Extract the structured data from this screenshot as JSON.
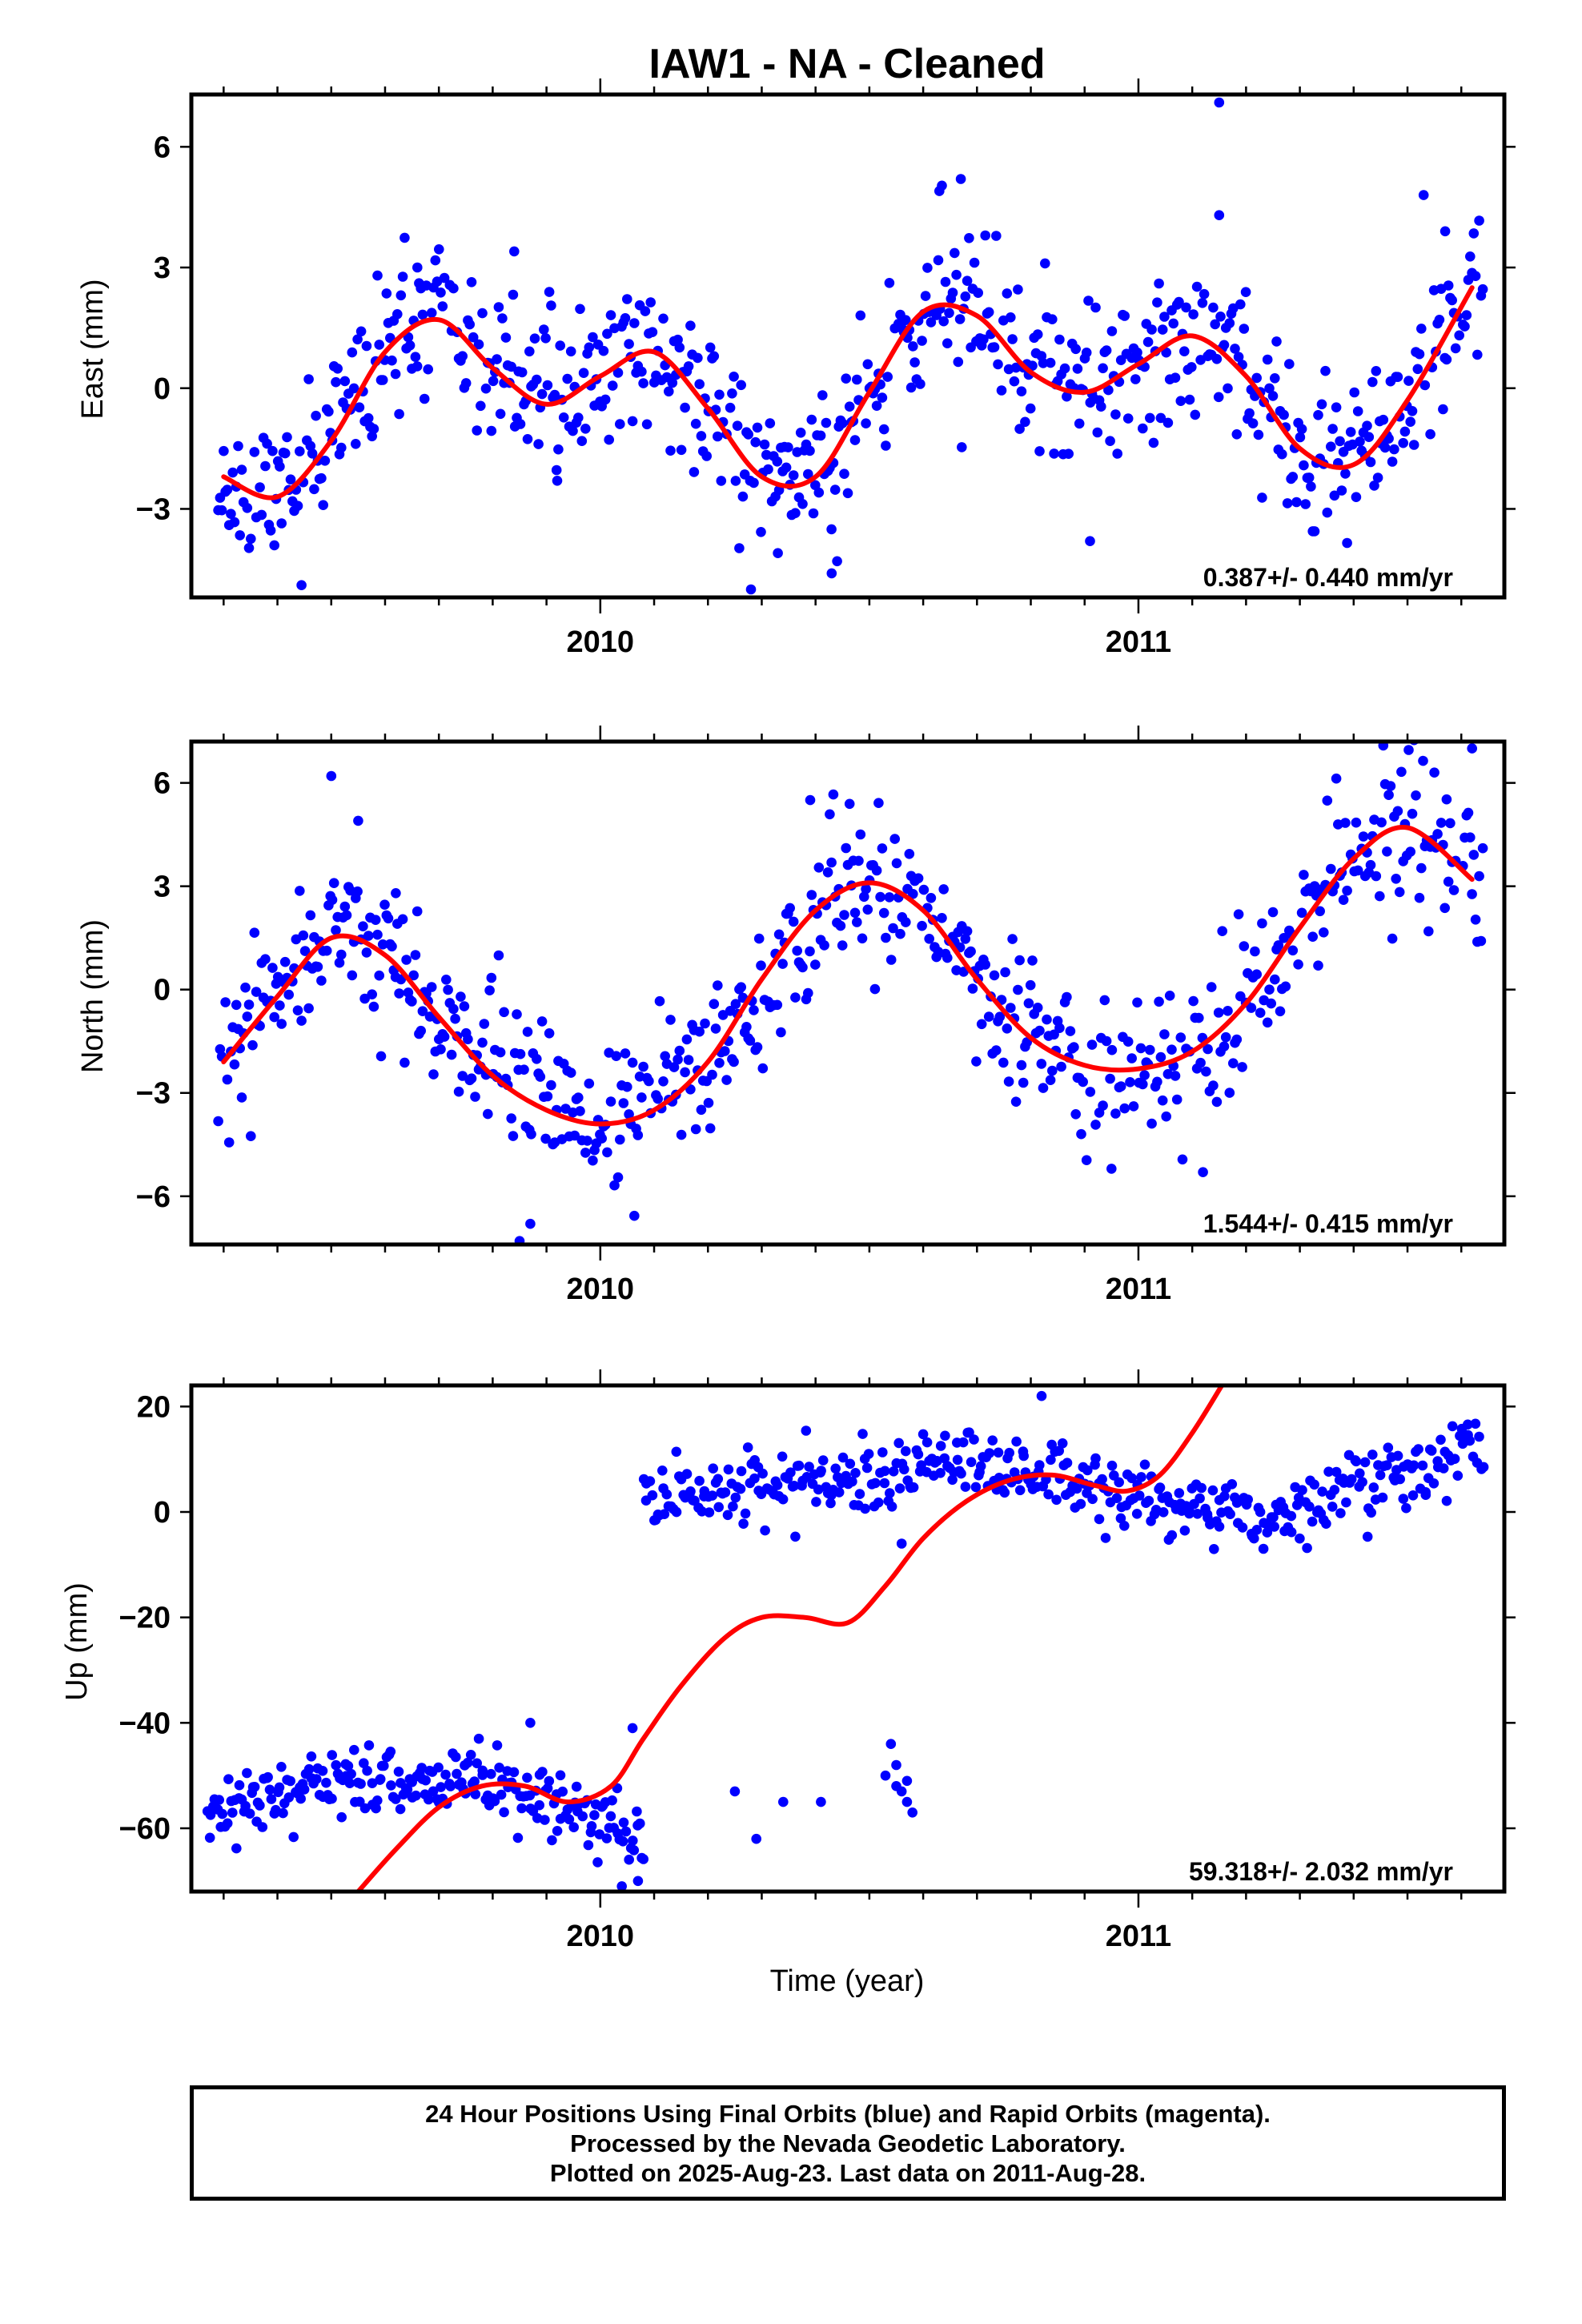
{
  "title": "IAW1  - NA - Cleaned",
  "xlabel": "Time (year)",
  "footer": {
    "line1": "24 Hour Positions Using Final Orbits (blue) and Rapid Orbits (magenta).",
    "line2": "Processed by the Nevada Geodetic Laboratory.",
    "line3": "Plotted on 2025-Aug-23. Last data on 2011-Aug-28."
  },
  "colors": {
    "points": "#0000ff",
    "fit": "#ff0000",
    "axes": "#000000"
  },
  "chart_data": [
    {
      "type": "scatter",
      "panel": "east",
      "ylabel": "East (mm)",
      "rate": "0.387+/- 0.440 mm/yr",
      "xlim": [
        2009.24,
        2011.68
      ],
      "ylim": [
        -5.2,
        7.3
      ],
      "xticks": [
        2010,
        2011
      ],
      "yticks": [
        -3,
        0,
        3,
        6
      ],
      "ytick_labels": [
        "−3",
        "0",
        "3",
        "6"
      ],
      "fit_x": [
        2009.3,
        2009.4,
        2009.5,
        2009.6,
        2009.7,
        2009.8,
        2009.9,
        2010.0,
        2010.1,
        2010.2,
        2010.3,
        2010.4,
        2010.5,
        2010.6,
        2010.7,
        2010.8,
        2010.9,
        2011.0,
        2011.1,
        2011.2,
        2011.3,
        2011.4,
        2011.5,
        2011.62
      ],
      "fit_y": [
        -2.2,
        -2.7,
        -1.3,
        0.9,
        1.7,
        0.5,
        -0.4,
        0.3,
        0.9,
        -0.5,
        -2.2,
        -2.2,
        -0.1,
        1.9,
        1.8,
        0.4,
        -0.1,
        0.6,
        1.3,
        0.3,
        -1.5,
        -1.9,
        -0.3,
        2.5
      ],
      "noise": 0.95,
      "extras": [
        [
          2009.66,
          3.0
        ],
        [
          2009.84,
          3.4
        ],
        [
          2010.63,
          4.9
        ],
        [
          2010.67,
          5.2
        ],
        [
          2011.15,
          7.1
        ],
        [
          2011.15,
          4.3
        ],
        [
          2011.53,
          4.8
        ],
        [
          2011.57,
          3.9
        ],
        [
          2010.33,
          -4.1
        ],
        [
          2010.43,
          -4.6
        ],
        [
          2010.28,
          -5.0
        ],
        [
          2010.44,
          -4.3
        ],
        [
          2010.91,
          -3.8
        ],
        [
          2009.92,
          -2.3
        ]
      ],
      "seed": 11
    },
    {
      "type": "scatter",
      "panel": "north",
      "ylabel": "North (mm)",
      "rate": "1.544+/- 0.415 mm/yr",
      "xlim": [
        2009.24,
        2011.68
      ],
      "ylim": [
        -7.4,
        7.2
      ],
      "xticks": [
        2010,
        2011
      ],
      "yticks": [
        -6,
        -3,
        0,
        3,
        6
      ],
      "ytick_labels": [
        "−6",
        "−3",
        "0",
        "3",
        "6"
      ],
      "fit_x": [
        2009.3,
        2009.4,
        2009.5,
        2009.6,
        2009.7,
        2009.8,
        2009.9,
        2010.0,
        2010.1,
        2010.2,
        2010.3,
        2010.4,
        2010.5,
        2010.6,
        2010.7,
        2010.8,
        2010.9,
        2011.0,
        2011.1,
        2011.2,
        2011.3,
        2011.4,
        2011.5,
        2011.62
      ],
      "fit_y": [
        -2.1,
        -0.2,
        1.5,
        1.0,
        -0.8,
        -2.5,
        -3.5,
        -3.9,
        -3.5,
        -2.1,
        0.3,
        2.3,
        3.1,
        2.3,
        0.3,
        -1.4,
        -2.2,
        -2.3,
        -1.8,
        -0.4,
        1.8,
        3.8,
        4.7,
        3.2
      ],
      "noise": 1.1,
      "extras": [
        [
          2009.5,
          6.2
        ],
        [
          2009.55,
          4.9
        ],
        [
          2010.39,
          5.5
        ],
        [
          2011.62,
          7.0
        ],
        [
          2011.55,
          6.3
        ],
        [
          2009.85,
          -7.3
        ],
        [
          2009.87,
          -6.8
        ],
        [
          2011.12,
          -5.3
        ],
        [
          2010.95,
          -5.2
        ],
        [
          2009.62,
          2.8
        ]
      ],
      "seed": 23
    },
    {
      "type": "scatter",
      "panel": "up",
      "ylabel": "Up (mm)",
      "rate": "59.318+/- 2.032 mm/yr",
      "xlim": [
        2009.24,
        2011.68
      ],
      "ylim": [
        -72,
        24
      ],
      "xticks": [
        2010,
        2011
      ],
      "yticks": [
        -60,
        -40,
        -20,
        0,
        20
      ],
      "ytick_labels": [
        "−60",
        "−40",
        "−20",
        "0",
        "20"
      ],
      "fit_x": [
        2009.55,
        2009.62,
        2009.7,
        2009.78,
        2009.86,
        2009.94,
        2010.02,
        2010.08,
        2010.15,
        2010.23,
        2010.3,
        2010.38,
        2010.46,
        2010.53,
        2010.6,
        2010.68,
        2010.76,
        2010.84,
        2010.92,
        2010.98,
        2011.04,
        2011.1,
        2011.155
      ],
      "fit_y": [
        -72,
        -64,
        -56,
        -52,
        -52,
        -55,
        -52,
        -43,
        -33,
        -24,
        -20,
        -20,
        -21,
        -14,
        -5,
        2,
        6,
        7,
        5,
        4,
        7,
        15,
        24
      ],
      "segments": [
        {
          "x0": 2009.27,
          "x1": 2010.08,
          "knots_x": [
            2009.27,
            2009.4,
            2009.55,
            2009.7,
            2009.85,
            2010.0,
            2010.08
          ],
          "knots_y": [
            -57,
            -54,
            -49,
            -51,
            -53,
            -58,
            -63
          ],
          "noise": 3.2,
          "count": 230
        },
        {
          "x0": 2010.08,
          "x1": 2011.64,
          "knots_x": [
            2010.08,
            2010.25,
            2010.45,
            2010.65,
            2010.85,
            2011.0,
            2011.2,
            2011.4,
            2011.64
          ],
          "knots_y": [
            2,
            4,
            6,
            10,
            7,
            3,
            -2,
            4,
            13
          ],
          "noise": 3.3,
          "count": 420
        }
      ],
      "extras": [
        [
          2010.25,
          -53
        ],
        [
          2010.29,
          -62
        ],
        [
          2010.34,
          -55
        ],
        [
          2010.41,
          -55
        ],
        [
          2010.54,
          -44
        ],
        [
          2010.55,
          -48
        ],
        [
          2010.55,
          -52
        ],
        [
          2010.56,
          -53
        ],
        [
          2010.57,
          -55
        ],
        [
          2010.58,
          -57
        ],
        [
          2010.57,
          -51
        ],
        [
          2010.53,
          -50
        ],
        [
          2010.56,
          -6
        ],
        [
          2010.82,
          22
        ],
        [
          2010.04,
          -71
        ],
        [
          2010.07,
          -70
        ],
        [
          2010.06,
          -41
        ],
        [
          2009.87,
          -40
        ]
      ],
      "seed": 37
    }
  ]
}
